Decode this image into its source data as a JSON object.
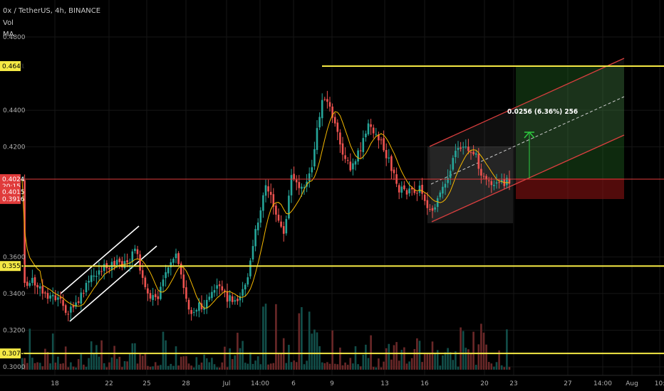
{
  "chart_data": {
    "type": "candlestick",
    "symbol_line": "0x / TetherUS, 4h, BINANCE",
    "indicators": [
      "Vol",
      "MA"
    ],
    "y_ticks": [
      "0.4800",
      "0.4400",
      "0.4200",
      "0.3600",
      "0.3400",
      "0.3200",
      "0.3000"
    ],
    "x_ticks": [
      "18",
      "22",
      "25",
      "28",
      "Jul",
      "14:00",
      "6",
      "9",
      "13",
      "16",
      "20",
      "23",
      "27",
      "14:00",
      "Aug",
      "10:"
    ],
    "price_badges": [
      {
        "text": "0.4641",
        "price": 0.4641,
        "bg": "#1f9c2e",
        "fg": "#ffffff"
      },
      {
        "text": "0.4641",
        "price": 0.4641,
        "bg": "#f5e945",
        "fg": "#000000"
      },
      {
        "text": "0.4024",
        "price": 0.4024,
        "bg": "#e03b3b",
        "fg": "#ffffff"
      },
      {
        "text": "20:15",
        "price": 0.3985,
        "bg": "#e03b3b",
        "fg": "#ffffff"
      },
      {
        "text": "0.4015",
        "price": 0.3955,
        "bg": "#e03b3b",
        "fg": "#ffffff"
      },
      {
        "text": "0.3916",
        "price": 0.3916,
        "bg": "#e03b3b",
        "fg": "#ffffff"
      },
      {
        "text": "0.3550",
        "price": 0.355,
        "bg": "#f5e945",
        "fg": "#000000"
      },
      {
        "text": "0.3073",
        "price": 0.3073,
        "bg": "#f5e945",
        "fg": "#000000"
      }
    ],
    "horizontal_levels": [
      {
        "price": 0.4641,
        "color": "#f5e945"
      },
      {
        "price": 0.355,
        "color": "#f5e945"
      },
      {
        "price": 0.3073,
        "color": "#f5e945"
      },
      {
        "price": 0.4024,
        "color": "#e03b3b"
      }
    ],
    "measure_text": "0.0256 (6.36%) 256",
    "colors": {
      "up": "#26a69a",
      "down": "#ef5350",
      "ma": "#f5b800",
      "background": "#000000"
    }
  }
}
